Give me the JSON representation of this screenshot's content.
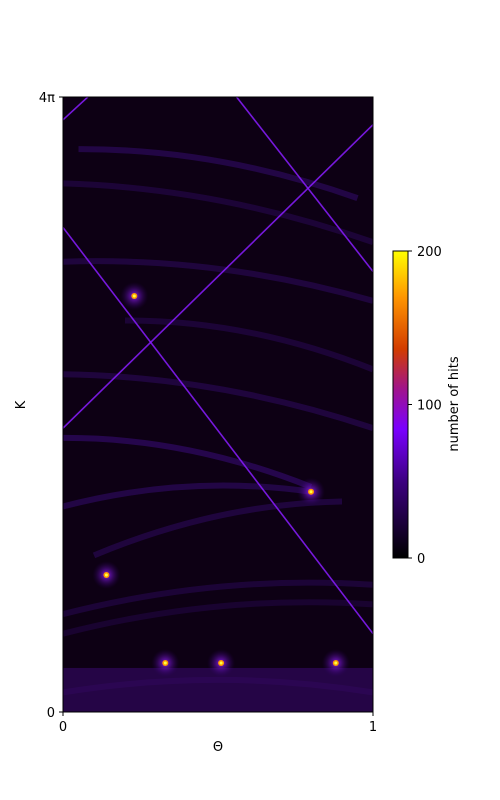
{
  "chart_data": {
    "type": "heatmap",
    "title": "",
    "xlabel": "Θ",
    "ylabel": "K",
    "xlim": [
      0,
      1
    ],
    "ylim": [
      0,
      12.566
    ],
    "x_ticks": [
      "0",
      "1"
    ],
    "y_ticks": [
      "0",
      "4π"
    ],
    "colormap": "gnuplot",
    "colors": {
      "low": "#000000",
      "mid_low": "#7a00ff",
      "mid": "#a0148c",
      "mid_high": "#d23c00",
      "high": "#ffff00"
    },
    "colorbar": {
      "label": "number of hits",
      "range": [
        0,
        200
      ],
      "ticks": [
        "0",
        "100",
        "200"
      ]
    },
    "features": {
      "diagonal_lines": [
        {
          "x": [
            0,
            1
          ],
          "y": [
            9.9,
            1.6
          ]
        },
        {
          "x": [
            0,
            1
          ],
          "y": [
            5.8,
            12.0
          ]
        },
        {
          "x": [
            0.56,
            1
          ],
          "y": [
            12.566,
            9.0
          ]
        },
        {
          "x": [
            0,
            0.08
          ],
          "y": [
            12.1,
            12.566
          ]
        }
      ],
      "cusps": [
        {
          "x": 0.33,
          "y": 1.0
        },
        {
          "x": 0.51,
          "y": 1.0
        },
        {
          "x": 0.88,
          "y": 1.0
        },
        {
          "x": 0.14,
          "y": 2.8
        },
        {
          "x": 0.8,
          "y": 4.5
        },
        {
          "x": 0.23,
          "y": 8.5
        }
      ]
    }
  }
}
